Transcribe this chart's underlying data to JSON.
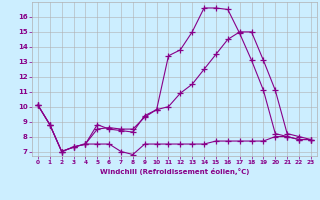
{
  "xlabel": "Windchill (Refroidissement éolien,°C)",
  "bg_color": "#cceeff",
  "grid_color": "#b0b0b0",
  "line_color": "#880088",
  "xlim": [
    -0.5,
    23.5
  ],
  "ylim": [
    6.7,
    17.0
  ],
  "xticks": [
    0,
    1,
    2,
    3,
    4,
    5,
    6,
    7,
    8,
    9,
    10,
    11,
    12,
    13,
    14,
    15,
    16,
    17,
    18,
    19,
    20,
    21,
    22,
    23
  ],
  "yticks": [
    7,
    8,
    9,
    10,
    11,
    12,
    13,
    14,
    15,
    16
  ],
  "line1_x": [
    0,
    1,
    2,
    3,
    4,
    5,
    6,
    7,
    8,
    9,
    10,
    11,
    12,
    13,
    14,
    15,
    16,
    17,
    18,
    19,
    20,
    21,
    22,
    23
  ],
  "line1_y": [
    10.1,
    8.8,
    7.0,
    7.3,
    7.5,
    8.8,
    8.5,
    8.4,
    8.3,
    9.4,
    9.8,
    13.4,
    13.8,
    15.0,
    16.6,
    16.6,
    16.5,
    14.9,
    13.1,
    11.1,
    8.2,
    8.0,
    7.8,
    7.8
  ],
  "line2_x": [
    0,
    1,
    2,
    3,
    4,
    5,
    6,
    7,
    8,
    9,
    10,
    11,
    12,
    13,
    14,
    15,
    16,
    17,
    18,
    19,
    20,
    21,
    22,
    23
  ],
  "line2_y": [
    10.1,
    8.8,
    7.0,
    7.3,
    7.5,
    8.5,
    8.6,
    8.5,
    8.5,
    9.3,
    9.8,
    10.0,
    10.9,
    11.5,
    12.5,
    13.5,
    14.5,
    15.0,
    15.0,
    13.1,
    11.1,
    8.2,
    8.0,
    7.8
  ],
  "line3_x": [
    0,
    1,
    2,
    3,
    4,
    5,
    6,
    7,
    8,
    9,
    10,
    11,
    12,
    13,
    14,
    15,
    16,
    17,
    18,
    19,
    20,
    21,
    22,
    23
  ],
  "line3_y": [
    10.1,
    8.8,
    7.0,
    7.3,
    7.5,
    7.5,
    7.5,
    7.0,
    6.8,
    7.5,
    7.5,
    7.5,
    7.5,
    7.5,
    7.5,
    7.7,
    7.7,
    7.7,
    7.7,
    7.7,
    8.0,
    8.0,
    7.8,
    7.8
  ]
}
